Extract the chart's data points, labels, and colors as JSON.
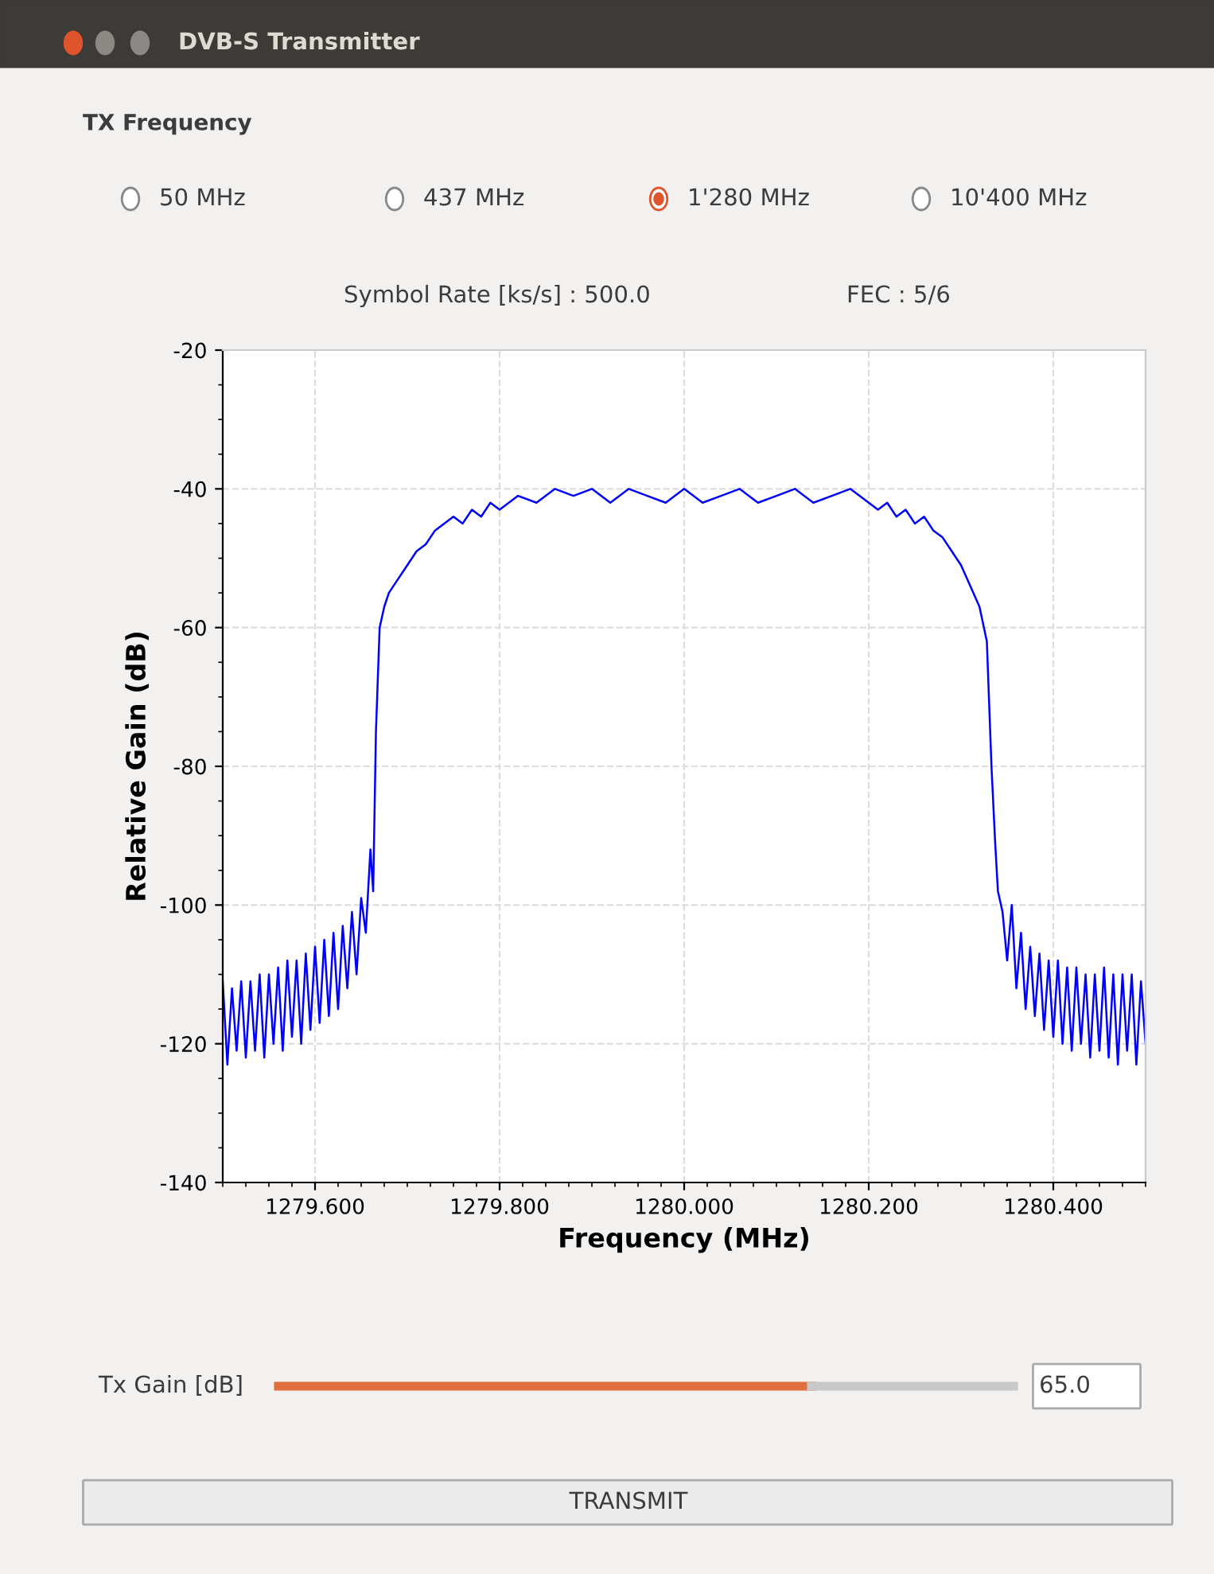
{
  "chart_data": {
    "type": "line",
    "title": "DVB-S Transmitter",
    "xlabel": "Frequency (MHz)",
    "ylabel": "Relative Gain (dB)",
    "annotations": [
      "TX Frequency",
      "50 MHz",
      "437 MHz",
      "1'280 MHz",
      "10'400 MHz",
      "Symbol Rate [ks/s] : 500.0",
      "FEC : 5/6",
      "Tx Gain [dB]",
      "65.0",
      "TRANSMIT"
    ],
    "xlim": [
      1279.5,
      1280.5
    ],
    "ylim": [
      -140,
      -20
    ],
    "xticks": [
      {
        "value": 1279.6,
        "label": "1279.600"
      },
      {
        "value": 1279.8,
        "label": "1279.800"
      },
      {
        "value": 1280.0,
        "label": "1280.000"
      },
      {
        "value": 1280.2,
        "label": "1280.200"
      },
      {
        "value": 1280.4,
        "label": "1280.400"
      }
    ],
    "yticks": [
      -140,
      -120,
      -100,
      -80,
      -60,
      -40,
      -20
    ],
    "grid": true,
    "legend": false,
    "marker": "none",
    "line_style": "solid",
    "series": [
      {
        "color": "#0000ff",
        "x": [
          1279.5,
          1279.505,
          1279.51,
          1279.515,
          1279.52,
          1279.525,
          1279.53,
          1279.535,
          1279.54,
          1279.545,
          1279.55,
          1279.555,
          1279.56,
          1279.565,
          1279.57,
          1279.575,
          1279.58,
          1279.585,
          1279.59,
          1279.595,
          1279.6,
          1279.605,
          1279.61,
          1279.615,
          1279.62,
          1279.625,
          1279.63,
          1279.635,
          1279.64,
          1279.645,
          1279.65,
          1279.655,
          1279.66,
          1279.663,
          1279.666,
          1279.67,
          1279.675,
          1279.68,
          1279.69,
          1279.7,
          1279.71,
          1279.72,
          1279.73,
          1279.74,
          1279.75,
          1279.76,
          1279.77,
          1279.78,
          1279.79,
          1279.8,
          1279.82,
          1279.84,
          1279.86,
          1279.88,
          1279.9,
          1279.92,
          1279.94,
          1279.96,
          1279.98,
          1280.0,
          1280.02,
          1280.04,
          1280.06,
          1280.08,
          1280.1,
          1280.12,
          1280.14,
          1280.16,
          1280.18,
          1280.2,
          1280.21,
          1280.22,
          1280.23,
          1280.24,
          1280.25,
          1280.26,
          1280.27,
          1280.28,
          1280.29,
          1280.3,
          1280.31,
          1280.32,
          1280.328,
          1280.333,
          1280.337,
          1280.34,
          1280.345,
          1280.35,
          1280.355,
          1280.36,
          1280.365,
          1280.37,
          1280.375,
          1280.38,
          1280.385,
          1280.39,
          1280.395,
          1280.4,
          1280.405,
          1280.41,
          1280.415,
          1280.42,
          1280.425,
          1280.43,
          1280.435,
          1280.44,
          1280.445,
          1280.45,
          1280.455,
          1280.46,
          1280.465,
          1280.47,
          1280.475,
          1280.48,
          1280.485,
          1280.49,
          1280.495,
          1280.5
        ],
        "values": [
          -111,
          -123,
          -112,
          -121,
          -111,
          -122,
          -111,
          -121,
          -110,
          -122,
          -110,
          -120,
          -109,
          -121,
          -108,
          -119,
          -108,
          -120,
          -107,
          -118,
          -106,
          -117,
          -105,
          -116,
          -104,
          -115,
          -103,
          -112,
          -101,
          -110,
          -99,
          -104,
          -92,
          -98,
          -75,
          -60,
          -57,
          -55,
          -53,
          -51,
          -49,
          -48,
          -46,
          -45,
          -44,
          -45,
          -43,
          -44,
          -42,
          -43,
          -41,
          -42,
          -40,
          -41,
          -40,
          -42,
          -40,
          -41,
          -42,
          -40,
          -42,
          -41,
          -40,
          -42,
          -41,
          -40,
          -42,
          -41,
          -40,
          -42,
          -43,
          -42,
          -44,
          -43,
          -45,
          -44,
          -46,
          -47,
          -49,
          -51,
          -54,
          -57,
          -62,
          -80,
          -91,
          -98,
          -101,
          -108,
          -100,
          -112,
          -104,
          -115,
          -106,
          -116,
          -107,
          -118,
          -108,
          -119,
          -108,
          -120,
          -109,
          -121,
          -109,
          -120,
          -110,
          -122,
          -110,
          -121,
          -109,
          -122,
          -110,
          -123,
          -110,
          -121,
          -110,
          -123,
          -111,
          -120
        ]
      }
    ]
  }
}
